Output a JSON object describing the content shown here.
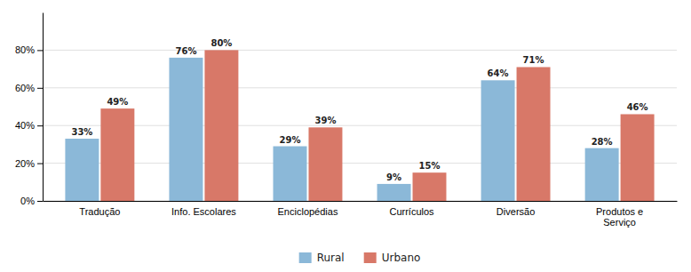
{
  "chart_data": {
    "type": "bar",
    "categories": [
      "Tradução",
      "Info. Escolares",
      "Enciclopédias",
      "Currículos",
      "Diversão",
      "Produtos e\nServiço"
    ],
    "series": [
      {
        "name": "Rural",
        "color": "#8bb8d8",
        "values": [
          33,
          76,
          29,
          9,
          64,
          28
        ],
        "value_labels": [
          "33%",
          "76%",
          "29%",
          "9%",
          "64%",
          "28%"
        ]
      },
      {
        "name": "Urbano",
        "color": "#d87868",
        "values": [
          49,
          80,
          39,
          15,
          71,
          46
        ],
        "value_labels": [
          "49%",
          "80%",
          "39%",
          "15%",
          "71%",
          "46%"
        ]
      }
    ],
    "ylim": [
      0,
      100
    ],
    "yticks": [
      {
        "value": 0,
        "label": "0%"
      },
      {
        "value": 20,
        "label": "20%"
      },
      {
        "value": 40,
        "label": "40%"
      },
      {
        "value": 60,
        "label": "60%"
      },
      {
        "value": 80,
        "label": "80%"
      }
    ],
    "grid": true,
    "legend": "bottom",
    "data_labels": true
  }
}
